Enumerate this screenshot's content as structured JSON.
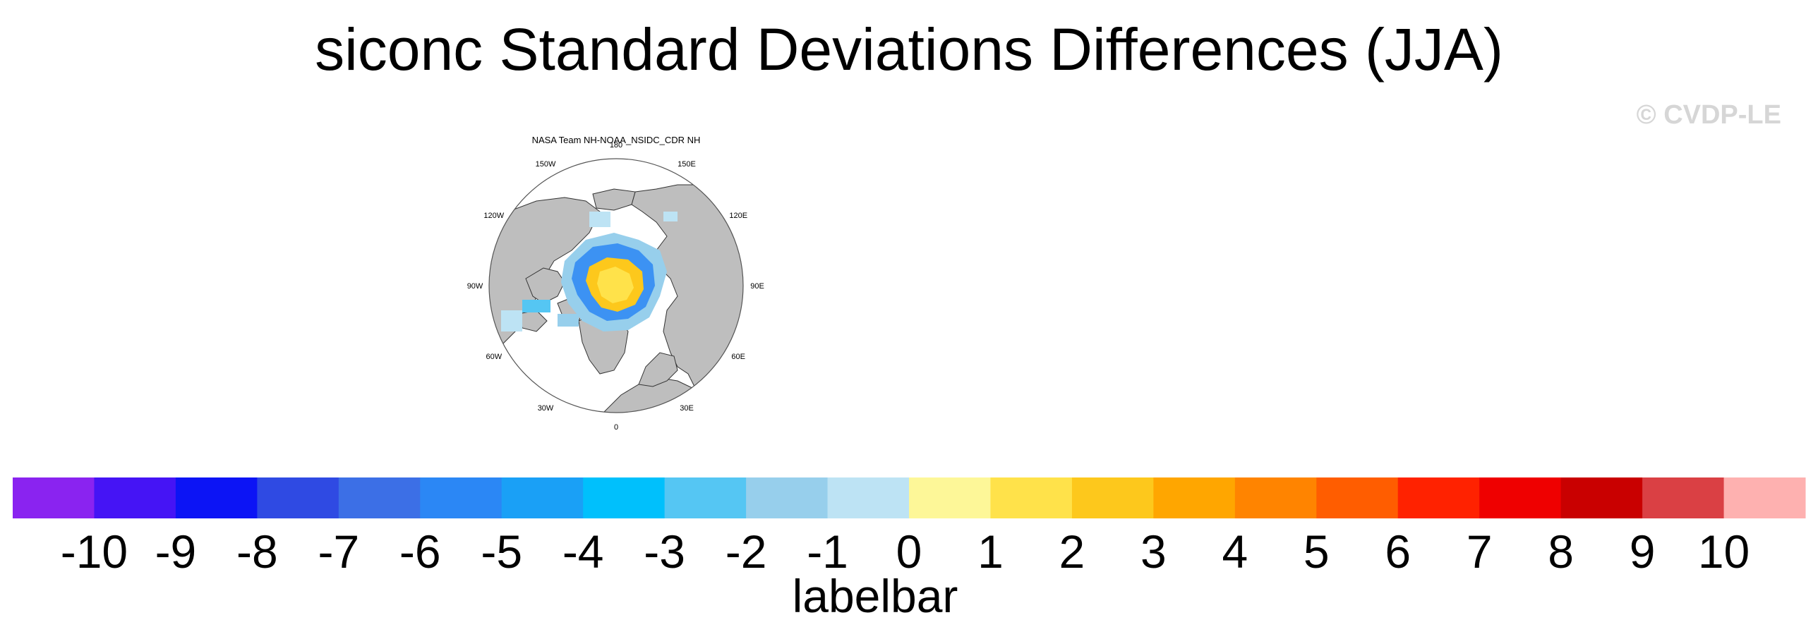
{
  "title": "siconc Standard Deviations Differences (JJA)",
  "watermark": "© CVDP-LE",
  "map": {
    "subtitle": "NASA Team NH-NOAA_NSIDC_CDR NH",
    "projection": "north-polar-stereographic",
    "longitude_labels": [
      "180",
      "150E",
      "120E",
      "90E",
      "60E",
      "30E",
      "0",
      "30W",
      "60W",
      "90W",
      "120W",
      "150W"
    ],
    "land_color": "#bebebe",
    "ocean_color": "#ffffff"
  },
  "colorbar": {
    "title": "labelbar",
    "tick_labels": [
      "-10",
      "-9",
      "-8",
      "-7",
      "-6",
      "-5",
      "-4",
      "-3",
      "-2",
      "-1",
      "0",
      "1",
      "2",
      "3",
      "4",
      "5",
      "6",
      "7",
      "8",
      "9",
      "10"
    ],
    "colors": [
      "#8a23f0",
      "#4514f5",
      "#0c14f5",
      "#2f4ae3",
      "#3c6fe6",
      "#2b87f5",
      "#1aa0f6",
      "#00c0fc",
      "#55c6f3",
      "#97cfec",
      "#bde3f4",
      "#fdf798",
      "#ffe24a",
      "#fdc81c",
      "#ffa600",
      "#ff8400",
      "#ff5d00",
      "#ff2200",
      "#ef0000",
      "#c90000",
      "#da4044",
      "#feb1b0"
    ]
  }
}
